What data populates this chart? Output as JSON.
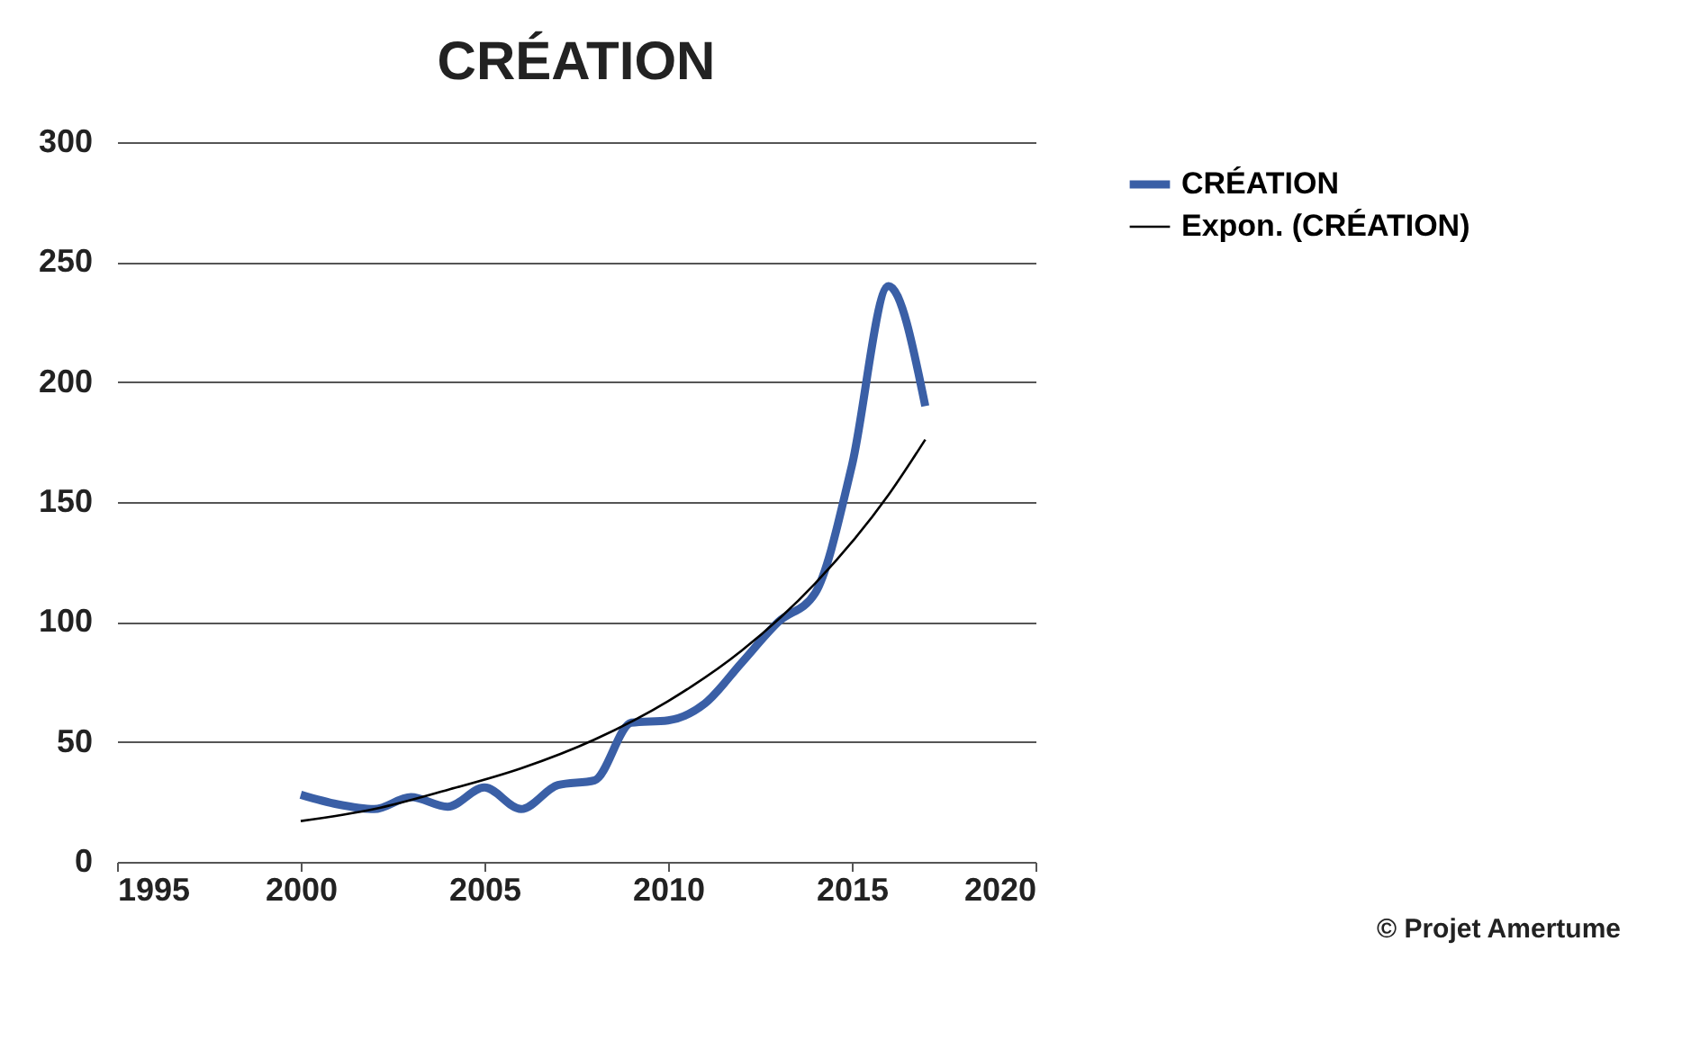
{
  "chart_data": {
    "type": "line",
    "title": "CRÉATION",
    "series": [
      {
        "name": "CRÉATION",
        "color": "#3a5fa6",
        "x": [
          2000,
          2001,
          2002,
          2003,
          2004,
          2005,
          2006,
          2007,
          2008,
          2009,
          2010,
          2011,
          2012,
          2013,
          2014,
          2015,
          2016,
          2017
        ],
        "values": [
          28,
          24,
          22,
          27,
          23,
          31,
          22,
          32,
          34,
          58,
          59,
          66,
          83,
          100,
          112,
          165,
          240,
          190
        ]
      },
      {
        "name": "Expon. (CRÉATION)",
        "color": "#000000",
        "x": [
          2000,
          2002,
          2004,
          2006,
          2008,
          2010,
          2012,
          2014,
          2016,
          2017
        ],
        "values": [
          17,
          22,
          30,
          39,
          51,
          67,
          88,
          116,
          153,
          176
        ]
      }
    ],
    "xlim": [
      1995,
      2020
    ],
    "xticks": [
      1995,
      2000,
      2005,
      2010,
      2015,
      2020
    ],
    "ylim": [
      0,
      300
    ],
    "yticks": [
      0,
      50,
      100,
      150,
      200,
      250,
      300
    ],
    "grid": "y",
    "legend": "right",
    "marker": "none",
    "annotations": [
      "© Projet Amertume"
    ]
  }
}
